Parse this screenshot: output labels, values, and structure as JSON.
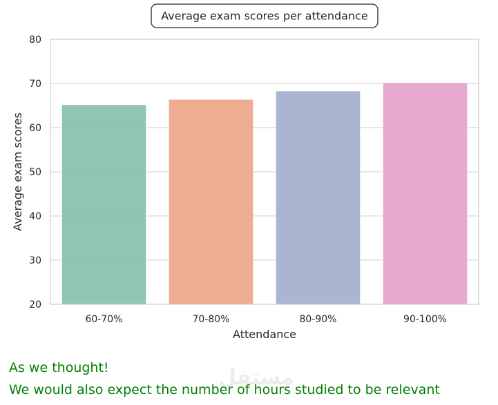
{
  "chart_data": {
    "type": "bar",
    "title": "Average exam scores per attendance",
    "xlabel": "Attendance",
    "ylabel": "Average exam scores",
    "categories": [
      "60-70%",
      "70-80%",
      "80-90%",
      "90-100%"
    ],
    "values": [
      65.2,
      66.4,
      68.3,
      70.2
    ],
    "ylim": [
      20,
      80
    ],
    "yticks": [
      20,
      30,
      40,
      50,
      60,
      70,
      80
    ],
    "grid": true,
    "colors": [
      "#8ec4b0",
      "#eeab8e",
      "#a8b4d0",
      "#e4a8cc"
    ]
  },
  "caption": {
    "line1": "As we thought!",
    "line2": "We would also expect the number of hours studied to be relevant"
  },
  "watermark": {
    "text": "مستقل"
  }
}
